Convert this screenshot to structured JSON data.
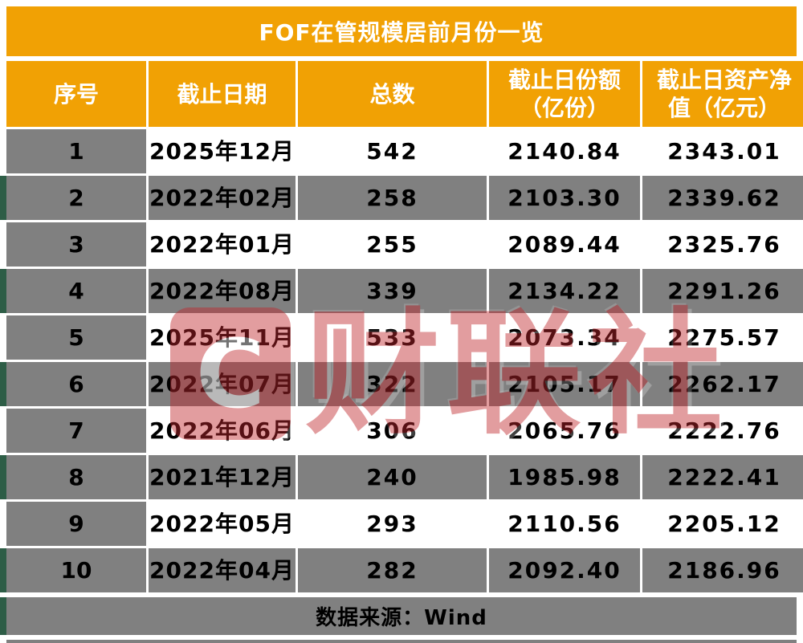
{
  "chart_data": {
    "type": "table",
    "title": "FOF在管规模居前月份一览",
    "columns": [
      "序号",
      "截止日期",
      "总数",
      "截止日份额（亿份）",
      "截止日资产净值（亿元）"
    ],
    "column_header_lines": [
      [
        "序号"
      ],
      [
        "截止日期"
      ],
      [
        "总数"
      ],
      [
        "截止日份额",
        "（亿份）"
      ],
      [
        "截止日资产净",
        "值（亿元）"
      ]
    ],
    "rows": [
      [
        "1",
        "2025年12月",
        "542",
        "2140.84",
        "2343.01"
      ],
      [
        "2",
        "2022年02月",
        "258",
        "2103.30",
        "2339.62"
      ],
      [
        "3",
        "2022年01月",
        "255",
        "2089.44",
        "2325.76"
      ],
      [
        "4",
        "2022年08月",
        "339",
        "2134.22",
        "2291.26"
      ],
      [
        "5",
        "2025年11月",
        "533",
        "2073.34",
        "2275.57"
      ],
      [
        "6",
        "2022年07月",
        "322",
        "2105.17",
        "2262.17"
      ],
      [
        "7",
        "2022年06月",
        "306",
        "2065.76",
        "2222.76"
      ],
      [
        "8",
        "2021年12月",
        "240",
        "1985.98",
        "2222.41"
      ],
      [
        "9",
        "2022年05月",
        "293",
        "2110.56",
        "2205.12"
      ],
      [
        "10",
        "2022年04月",
        "282",
        "2092.40",
        "2186.96"
      ]
    ],
    "source": "数据来源：Wind"
  },
  "watermark": {
    "logo_letter": "C",
    "text": "财联社"
  },
  "colors": {
    "header_orange": "#F1A104",
    "row_gray": "#808080",
    "watermark_red": "#C1272D",
    "edge_green": "#2d5d46",
    "header_text": "#FFFFFF",
    "body_text": "#000000"
  }
}
